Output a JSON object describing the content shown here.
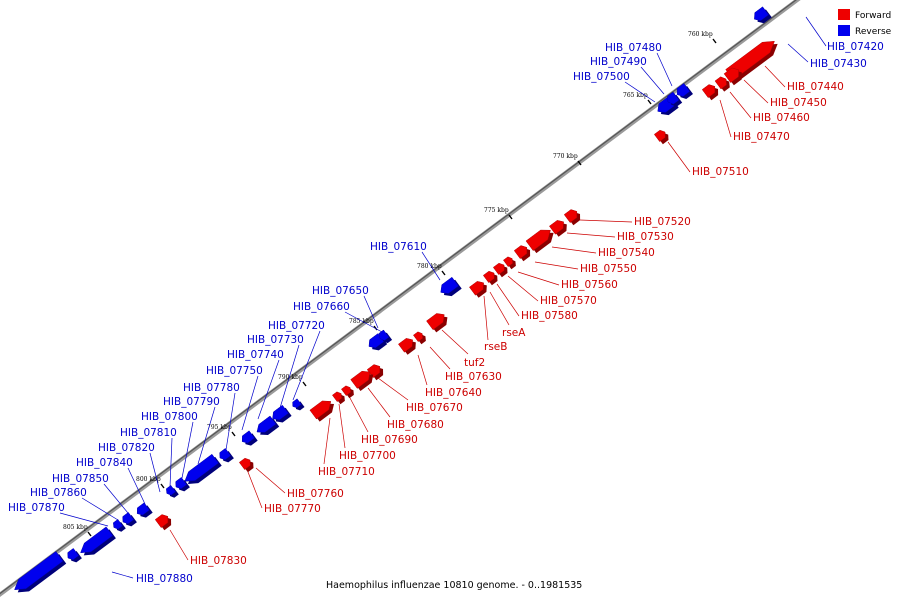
{
  "caption": "Haemophilus influenzae 10810 genome. - 0..1981535",
  "legend": [
    {
      "label": "Forward",
      "color": "#ee0000"
    },
    {
      "label": "Reverse",
      "color": "#0000ee"
    }
  ],
  "colors": {
    "forward": "#ee0000",
    "reverse": "#0000ee",
    "axis": "#808080"
  },
  "scale_ticks": [
    "760 kbp",
    "765 kbp",
    "770 kbp",
    "775 kbp",
    "780 kbp",
    "785 kbp",
    "790 kbp",
    "795 kbp",
    "800 kbp",
    "805 kbp"
  ],
  "forward_genes": [
    "HIB_07440",
    "HIB_07450",
    "HIB_07460",
    "HIB_07470",
    "HIB_07510",
    "HIB_07520",
    "HIB_07530",
    "HIB_07540",
    "HIB_07550",
    "HIB_07560",
    "HIB_07570",
    "HIB_07580",
    "rseA",
    "rseB",
    "tuf2",
    "HIB_07630",
    "HIB_07640",
    "HIB_07670",
    "HIB_07680",
    "HIB_07690",
    "HIB_07700",
    "HIB_07710",
    "HIB_07760",
    "HIB_07770",
    "HIB_07830"
  ],
  "reverse_genes": [
    "HIB_07420",
    "HIB_07430",
    "HIB_07480",
    "HIB_07490",
    "HIB_07500",
    "HIB_07610",
    "HIB_07650",
    "HIB_07660",
    "HIB_07720",
    "HIB_07730",
    "HIB_07740",
    "HIB_07750",
    "HIB_07780",
    "HIB_07790",
    "HIB_07800",
    "HIB_07810",
    "HIB_07820",
    "HIB_07840",
    "HIB_07850",
    "HIB_07860",
    "HIB_07870",
    "HIB_07880"
  ]
}
